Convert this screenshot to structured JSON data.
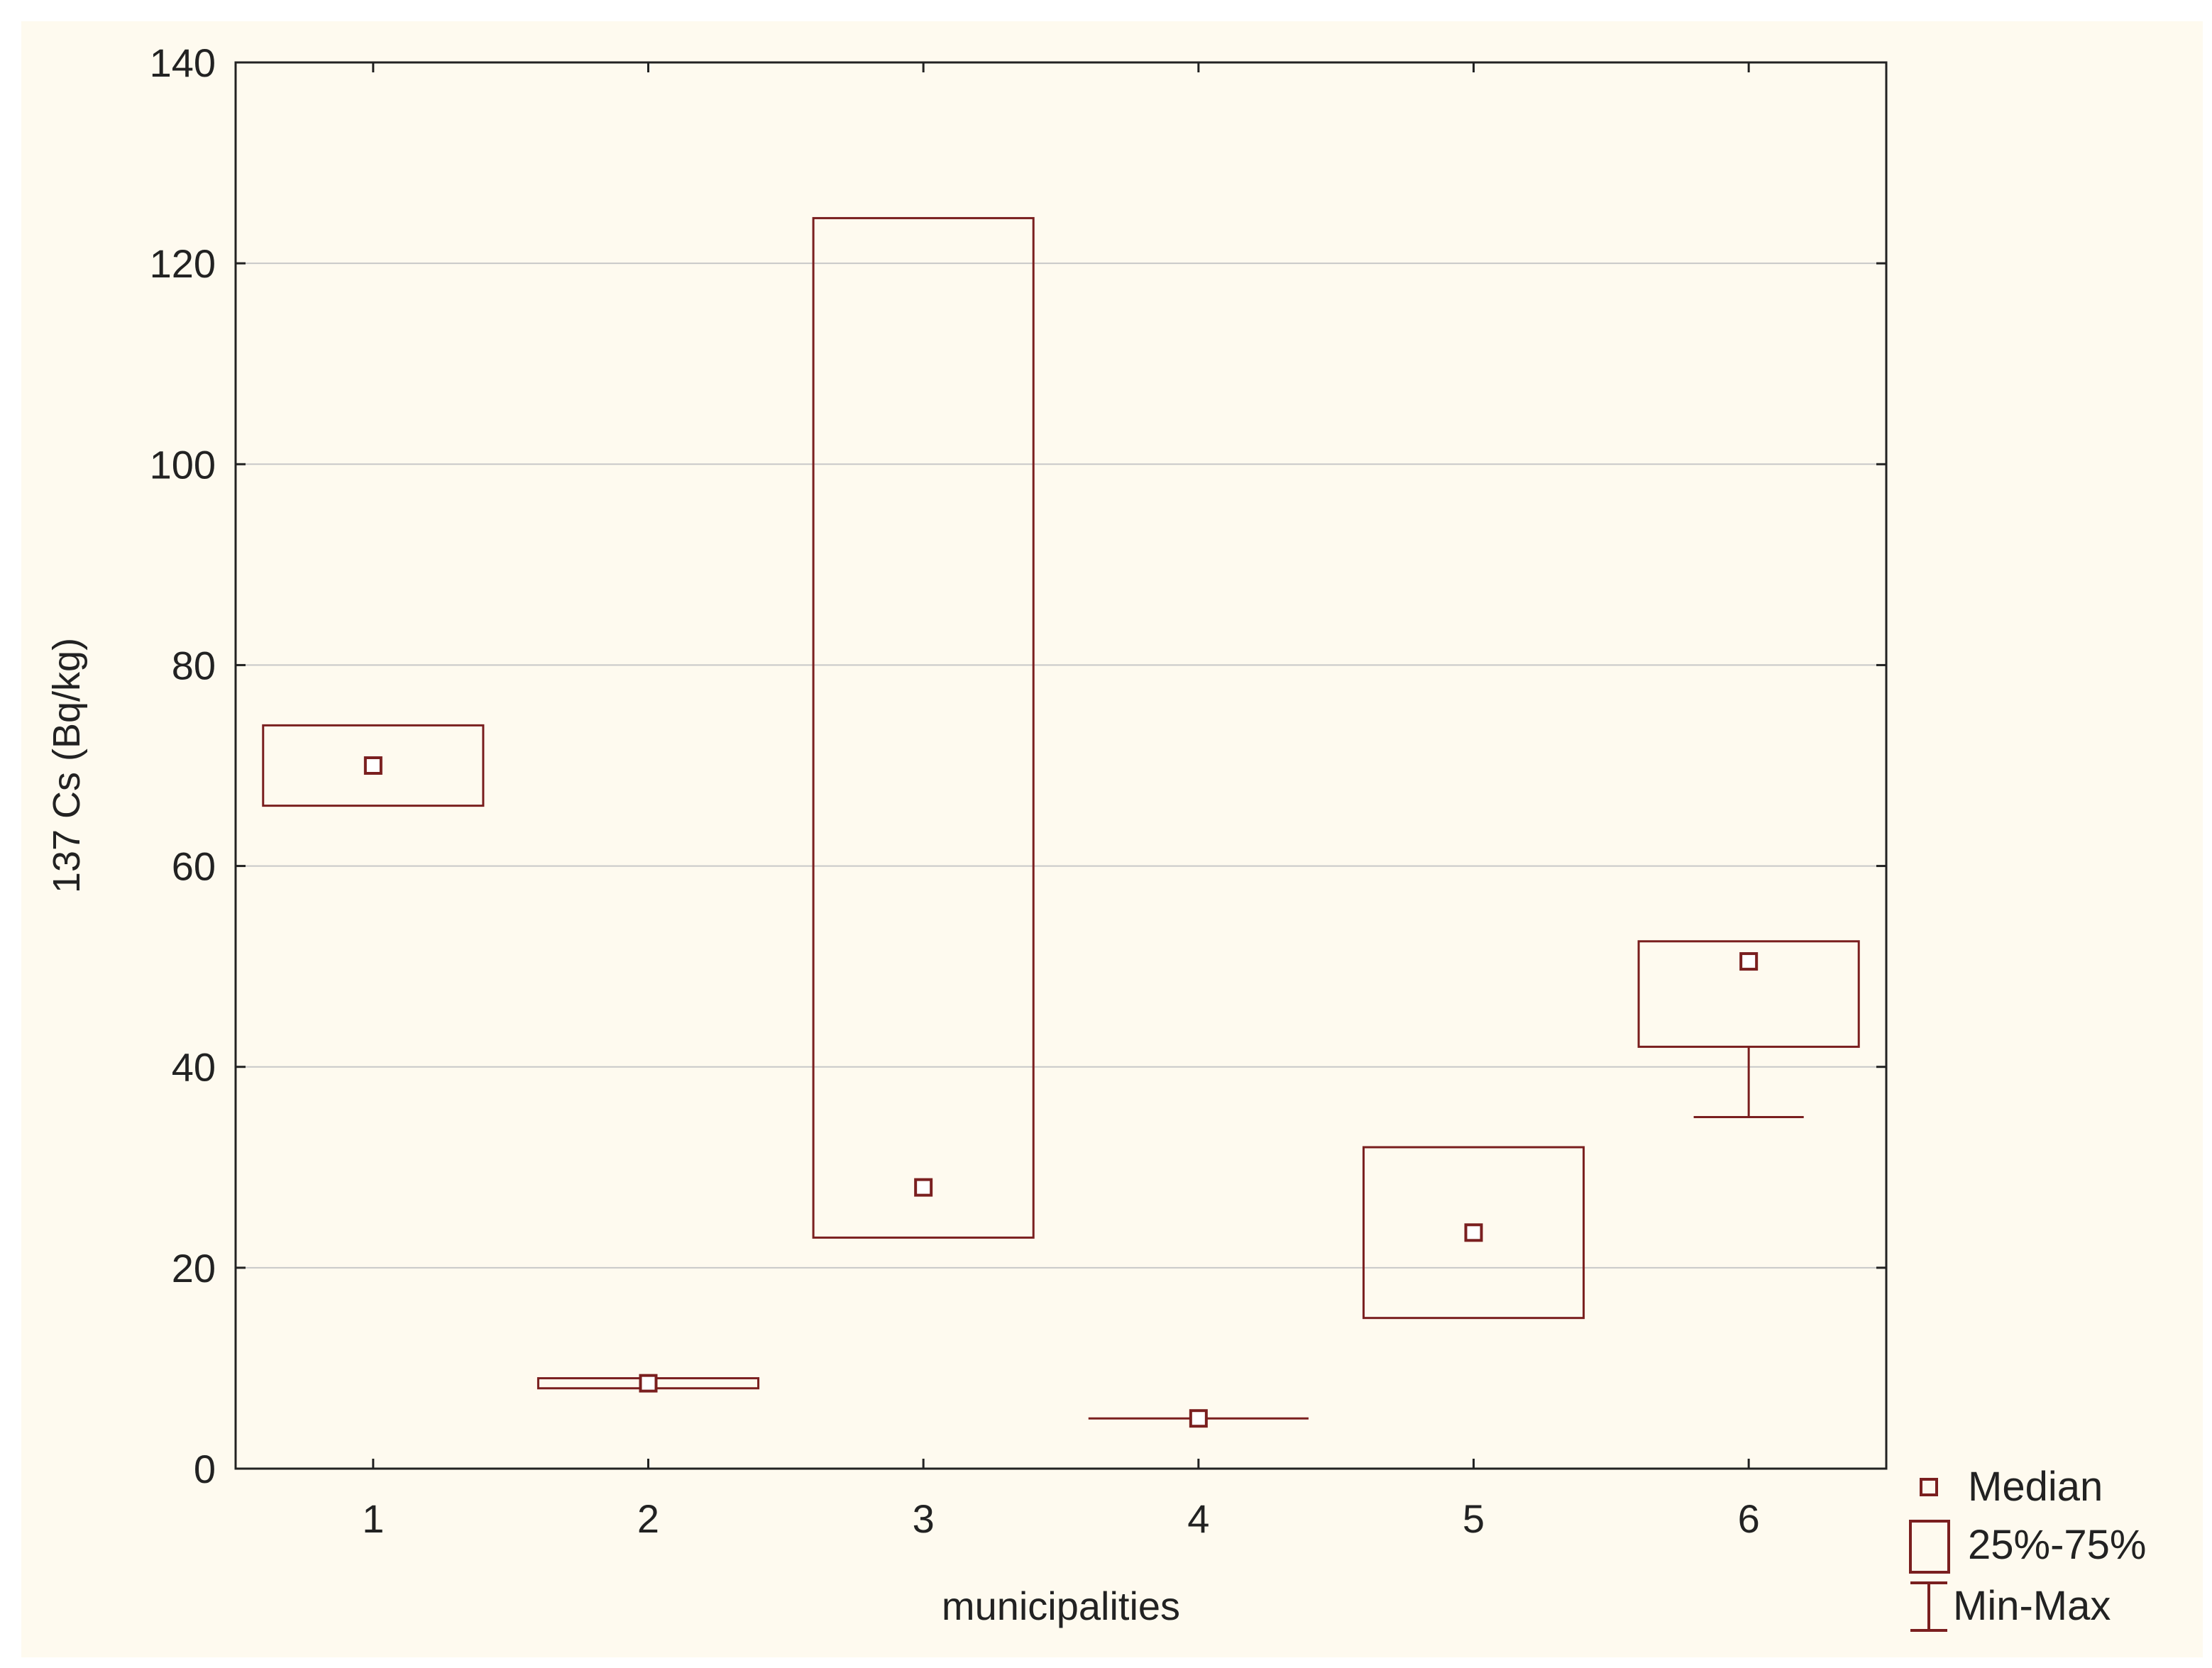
{
  "chart_data": {
    "type": "box",
    "title": "",
    "xlabel": "municipalities",
    "ylabel": "137 Cs (Bq/kg)",
    "ylim": [
      0,
      140
    ],
    "yticks": [
      0,
      20,
      40,
      60,
      80,
      100,
      120,
      140
    ],
    "categories": [
      "1",
      "2",
      "3",
      "4",
      "5",
      "6"
    ],
    "grid": true,
    "legend_position": "bottom-right",
    "legend": {
      "median_label": "Median",
      "box_label": "25%-75%",
      "whisker_label": "Min-Max"
    },
    "boxes": [
      {
        "category": "1",
        "min": 66,
        "q1": 66,
        "median": 70,
        "q3": 74,
        "max": 74
      },
      {
        "category": "2",
        "min": 8,
        "q1": 8,
        "median": 8.5,
        "q3": 9,
        "max": 9
      },
      {
        "category": "3",
        "min": 23,
        "q1": 23,
        "median": 28,
        "q3": 124.5,
        "max": 124.5
      },
      {
        "category": "4",
        "min": 5,
        "q1": 5,
        "median": 5,
        "q3": 5,
        "max": 5
      },
      {
        "category": "5",
        "min": 15,
        "q1": 15,
        "median": 23.5,
        "q3": 32,
        "max": 32
      },
      {
        "category": "6",
        "min": 35,
        "q1": 42,
        "median": 50.5,
        "q3": 52.5,
        "max": 52.5
      }
    ],
    "colors": {
      "mark": "#7a1f1f",
      "grid": "#c8c8c8",
      "axis": "#222222",
      "plot_background": "#ffffff",
      "panel_background": "#fefaef"
    }
  }
}
